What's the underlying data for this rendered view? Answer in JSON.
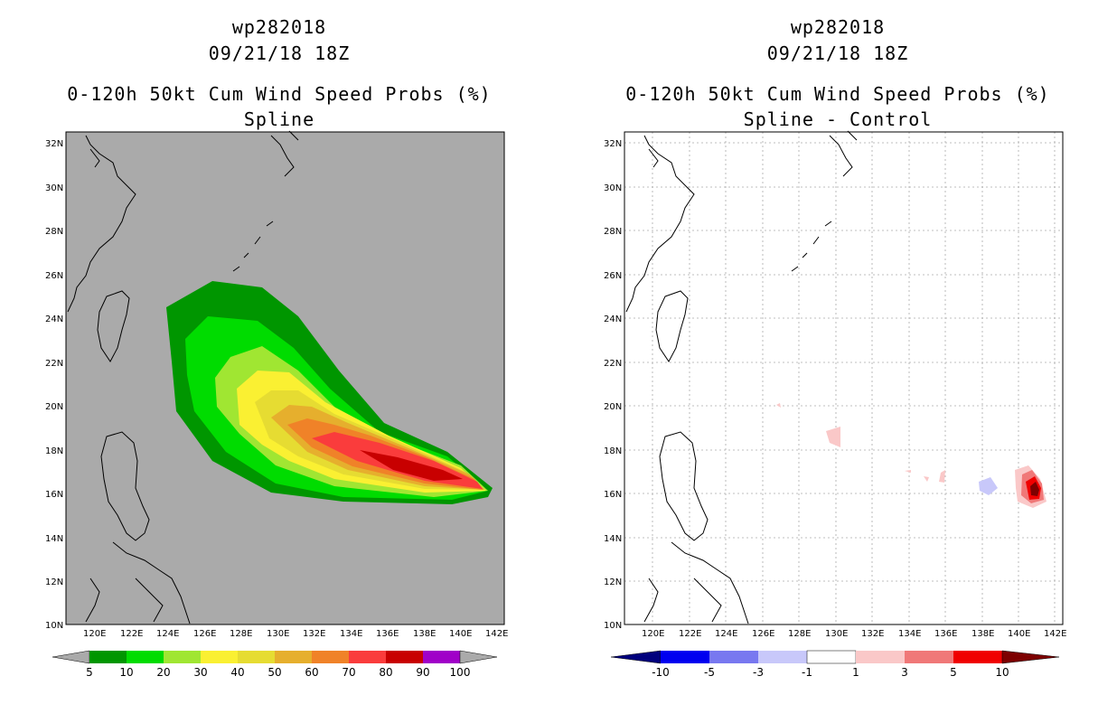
{
  "left_panel": {
    "storm_id": "wp282018",
    "datetime": "09/21/18 18Z",
    "product": "0-120h 50kt Cum Wind Speed Probs (%)",
    "subtitle": "Spline",
    "colorbar": {
      "labels": [
        "5",
        "10",
        "20",
        "30",
        "40",
        "50",
        "60",
        "70",
        "80",
        "90",
        "100"
      ],
      "colors": [
        "#009600",
        "#00dc00",
        "#a0e632",
        "#faf032",
        "#e6dc32",
        "#e6af2d",
        "#f08228",
        "#fa3c3c",
        "#c80000",
        "#a000c8"
      ]
    }
  },
  "right_panel": {
    "storm_id": "wp282018",
    "datetime": "09/21/18 18Z",
    "product": "0-120h 50kt Cum Wind Speed Probs (%)",
    "subtitle": "Spline - Control",
    "colorbar": {
      "labels": [
        "-10",
        "-5",
        "-3",
        "-1",
        "1",
        "3",
        "5",
        "10"
      ],
      "colors": [
        "#00007d",
        "#0000f0",
        "#7878f0",
        "#c8c8fa",
        "#ffffff",
        "#fac8c8",
        "#f07878",
        "#f00000",
        "#7d0000"
      ]
    }
  },
  "map": {
    "lat_labels": [
      "32N",
      "30N",
      "28N",
      "26N",
      "24N",
      "22N",
      "20N",
      "18N",
      "16N",
      "14N",
      "12N",
      "10N"
    ],
    "lon_labels": [
      "120E",
      "122E",
      "124E",
      "126E",
      "128E",
      "130E",
      "132E",
      "134E",
      "136E",
      "138E",
      "140E",
      "142E"
    ],
    "background_left": "#aaaaaa",
    "background_right": "#ffffff"
  }
}
